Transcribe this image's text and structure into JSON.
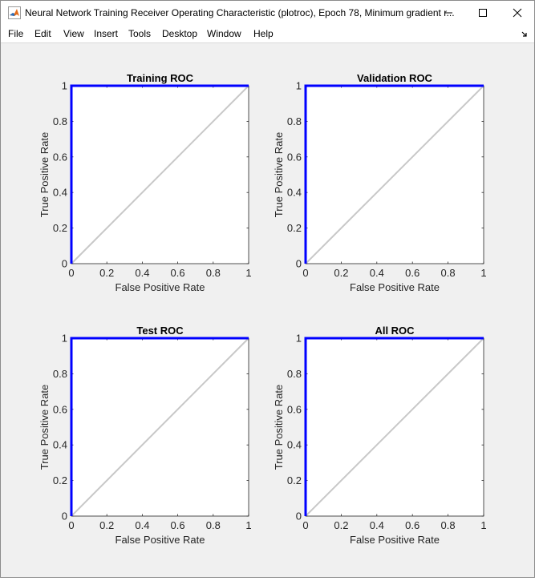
{
  "window": {
    "title": "Neural Network Training Receiver Operating Characteristic (plotroc), Epoch 78, Minimum gradient r..."
  },
  "menu": {
    "items": [
      "File",
      "Edit",
      "View",
      "Insert",
      "Tools",
      "Desktop",
      "Window",
      "Help"
    ]
  },
  "colors": {
    "roc_line": "#0000ff",
    "diagonal": "#c8c8c8",
    "figure_background": "#f0f0f0"
  },
  "chart_data": [
    {
      "type": "line",
      "title": "Training ROC",
      "xlabel": "False Positive Rate",
      "ylabel": "True Positive Rate",
      "xlim": [
        0,
        1
      ],
      "ylim": [
        0,
        1
      ],
      "xticks": [
        "0",
        "0.2",
        "0.4",
        "0.6",
        "0.8",
        "1"
      ],
      "yticks": [
        "0",
        "0.2",
        "0.4",
        "0.6",
        "0.8",
        "1"
      ],
      "series": [
        {
          "x": [
            0,
            0,
            1
          ],
          "y": [
            0,
            1,
            1
          ]
        },
        {
          "x": [
            0,
            1
          ],
          "y": [
            0,
            1
          ]
        }
      ]
    },
    {
      "type": "line",
      "title": "Validation ROC",
      "xlabel": "False Positive Rate",
      "ylabel": "True Positive Rate",
      "xlim": [
        0,
        1
      ],
      "ylim": [
        0,
        1
      ],
      "xticks": [
        "0",
        "0.2",
        "0.4",
        "0.6",
        "0.8",
        "1"
      ],
      "yticks": [
        "0",
        "0.2",
        "0.4",
        "0.6",
        "0.8",
        "1"
      ],
      "series": [
        {
          "x": [
            0,
            0,
            1
          ],
          "y": [
            0,
            1,
            1
          ]
        },
        {
          "x": [
            0,
            1
          ],
          "y": [
            0,
            1
          ]
        }
      ]
    },
    {
      "type": "line",
      "title": "Test ROC",
      "xlabel": "False Positive Rate",
      "ylabel": "True Positive Rate",
      "xlim": [
        0,
        1
      ],
      "ylim": [
        0,
        1
      ],
      "xticks": [
        "0",
        "0.2",
        "0.4",
        "0.6",
        "0.8",
        "1"
      ],
      "yticks": [
        "0",
        "0.2",
        "0.4",
        "0.6",
        "0.8",
        "1"
      ],
      "series": [
        {
          "x": [
            0,
            0,
            1
          ],
          "y": [
            0,
            1,
            1
          ]
        },
        {
          "x": [
            0,
            1
          ],
          "y": [
            0,
            1
          ]
        }
      ]
    },
    {
      "type": "line",
      "title": "All ROC",
      "xlabel": "False Positive Rate",
      "ylabel": "True Positive Rate",
      "xlim": [
        0,
        1
      ],
      "ylim": [
        0,
        1
      ],
      "xticks": [
        "0",
        "0.2",
        "0.4",
        "0.6",
        "0.8",
        "1"
      ],
      "yticks": [
        "0",
        "0.2",
        "0.4",
        "0.6",
        "0.8",
        "1"
      ],
      "series": [
        {
          "x": [
            0,
            0,
            1
          ],
          "y": [
            0,
            1,
            1
          ]
        },
        {
          "x": [
            0,
            1
          ],
          "y": [
            0,
            1
          ]
        }
      ]
    }
  ]
}
